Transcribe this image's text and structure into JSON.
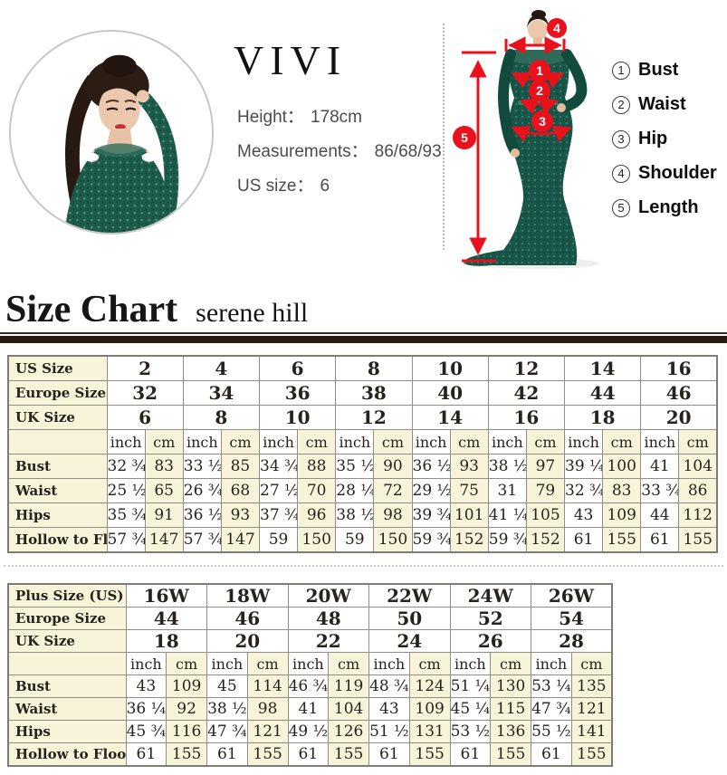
{
  "model_info": {
    "brand": "VIVI",
    "lines": [
      {
        "label": "Height：",
        "value": "178cm"
      },
      {
        "label": "Measurements：",
        "value": "86/68/93"
      },
      {
        "label": "US size：",
        "value": "6"
      }
    ]
  },
  "diagram": {
    "callouts": [
      "1",
      "2",
      "3",
      "4",
      "5"
    ],
    "legend": [
      {
        "num": "1",
        "label": "Bust"
      },
      {
        "num": "2",
        "label": "Waist"
      },
      {
        "num": "3",
        "label": "Hip"
      },
      {
        "num": "4",
        "label": "Shoulder"
      },
      {
        "num": "5",
        "label": "Length"
      }
    ]
  },
  "heading": {
    "title": "Size Chart",
    "subtitle": "serene hill"
  },
  "colors": {
    "accent_red": "#e8111c",
    "table_cream": "#f7f4d9",
    "heading_bar": "#281a0e",
    "dress_green": "#175648"
  },
  "chart_data": [
    {
      "type": "table",
      "title": "Standard sizes",
      "header_rows": [
        {
          "label": "US Size",
          "values": [
            "2",
            "4",
            "6",
            "8",
            "10",
            "12",
            "14",
            "16"
          ]
        },
        {
          "label": "Europe Size",
          "values": [
            "32",
            "34",
            "36",
            "38",
            "40",
            "42",
            "44",
            "46"
          ]
        },
        {
          "label": "UK Size",
          "values": [
            "6",
            "8",
            "10",
            "12",
            "14",
            "16",
            "18",
            "20"
          ]
        }
      ],
      "unit_labels": {
        "inch": "inch",
        "cm": "cm"
      },
      "rows": [
        {
          "label": "Bust",
          "cells": [
            [
              "32 ¾",
              "83"
            ],
            [
              "33 ½",
              "85"
            ],
            [
              "34 ¾",
              "88"
            ],
            [
              "35 ½",
              "90"
            ],
            [
              "36 ½",
              "93"
            ],
            [
              "38 ½",
              "97"
            ],
            [
              "39 ¼",
              "100"
            ],
            [
              "41",
              "104"
            ]
          ]
        },
        {
          "label": "Waist",
          "cells": [
            [
              "25 ½",
              "65"
            ],
            [
              "26 ¾",
              "68"
            ],
            [
              "27 ½",
              "70"
            ],
            [
              "28 ¼",
              "72"
            ],
            [
              "29 ½",
              "75"
            ],
            [
              "31",
              "79"
            ],
            [
              "32 ¾",
              "83"
            ],
            [
              "33 ¾",
              "86"
            ]
          ]
        },
        {
          "label": "Hips",
          "cells": [
            [
              "35 ¾",
              "91"
            ],
            [
              "36 ½",
              "93"
            ],
            [
              "37 ¾",
              "96"
            ],
            [
              "38 ½",
              "98"
            ],
            [
              "39 ¾",
              "101"
            ],
            [
              "41 ¼",
              "105"
            ],
            [
              "43",
              "109"
            ],
            [
              "44",
              "112"
            ]
          ]
        },
        {
          "label": "Hollow to Floor",
          "cells": [
            [
              "57 ¾",
              "147"
            ],
            [
              "57 ¾",
              "147"
            ],
            [
              "59",
              "150"
            ],
            [
              "59",
              "150"
            ],
            [
              "59 ¾",
              "152"
            ],
            [
              "59 ¾",
              "152"
            ],
            [
              "61",
              "155"
            ],
            [
              "61",
              "155"
            ]
          ]
        }
      ]
    },
    {
      "type": "table",
      "title": "Plus sizes",
      "header_rows": [
        {
          "label": "Plus Size (US)",
          "values": [
            "16W",
            "18W",
            "20W",
            "22W",
            "24W",
            "26W"
          ]
        },
        {
          "label": "Europe Size",
          "values": [
            "44",
            "46",
            "48",
            "50",
            "52",
            "54"
          ]
        },
        {
          "label": "UK Size",
          "values": [
            "18",
            "20",
            "22",
            "24",
            "26",
            "28"
          ]
        }
      ],
      "unit_labels": {
        "inch": "inch",
        "cm": "cm"
      },
      "rows": [
        {
          "label": "Bust",
          "cells": [
            [
              "43",
              "109"
            ],
            [
              "45",
              "114"
            ],
            [
              "46 ¾",
              "119"
            ],
            [
              "48 ¾",
              "124"
            ],
            [
              "51 ¼",
              "130"
            ],
            [
              "53 ¼",
              "135"
            ]
          ]
        },
        {
          "label": "Waist",
          "cells": [
            [
              "36 ¼",
              "92"
            ],
            [
              "38 ½",
              "98"
            ],
            [
              "41",
              "104"
            ],
            [
              "43",
              "109"
            ],
            [
              "45 ¼",
              "115"
            ],
            [
              "47 ¾",
              "121"
            ]
          ]
        },
        {
          "label": "Hips",
          "cells": [
            [
              "45 ¾",
              "116"
            ],
            [
              "47 ¾",
              "121"
            ],
            [
              "49 ½",
              "126"
            ],
            [
              "51 ½",
              "131"
            ],
            [
              "53 ½",
              "136"
            ],
            [
              "55 ½",
              "141"
            ]
          ]
        },
        {
          "label": "Hollow to Floor",
          "cells": [
            [
              "61",
              "155"
            ],
            [
              "61",
              "155"
            ],
            [
              "61",
              "155"
            ],
            [
              "61",
              "155"
            ],
            [
              "61",
              "155"
            ],
            [
              "61",
              "155"
            ]
          ]
        }
      ]
    }
  ]
}
